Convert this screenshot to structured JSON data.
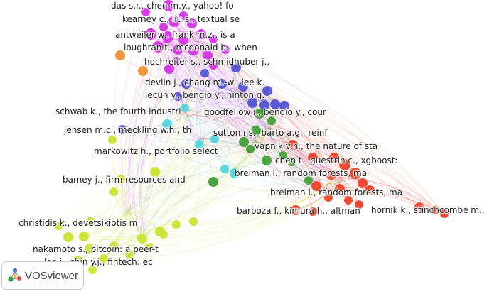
{
  "colors": {
    "magenta": "#d63be8",
    "orange": "#f0963c",
    "blue": "#5a5ad2",
    "cyan": "#5ad7de",
    "green": "#4ba33f",
    "red": "#ee4a32",
    "yellow": "#cde43c"
  },
  "labels": {
    "das": "das s.r., chen m.y., yahoo! fo",
    "kearney": "kearney c., liu s., textual se",
    "antweiler": "antweiler w., frank m.z., is a",
    "loughran": "loughran t., mcdonald b., when",
    "hochreiter": "hochreiter s., schmidhuber j.,",
    "devlin": "devlin j., chang m.-w., lee k.",
    "lecun": "lecun y., bengio y., hinton g.",
    "schwab": "schwab k., the fourth industri",
    "goodfellow": "goodfellow i., bengio y., cour",
    "jensen": "jensen m.c., meckling w.h., th",
    "sutton": "sutton r.s., barto a.g., reinf",
    "vapnik": "vapnik v.n., the nature of sta",
    "markowitz": "markowitz h., portfolio select",
    "chen": "chen t., guestrin c., xgboost:",
    "breiman1": "breiman l., random forests, ma",
    "barney": "barney j., firm resources and",
    "breiman2": "breiman l., random forests, ma",
    "barboza": "barboza f., kimura h., altman",
    "hornik": "hornik k., stinchcombe m., whi",
    "christidis": "christidis k., devetsikiotis m",
    "nakamoto": "nakamoto s., bitcoin: a peer-t",
    "lee": "lee i., shin y.j., fintech: ec"
  },
  "logo": {
    "text": "VOSviewer",
    "icon": "vosviewer-logo-icon"
  }
}
